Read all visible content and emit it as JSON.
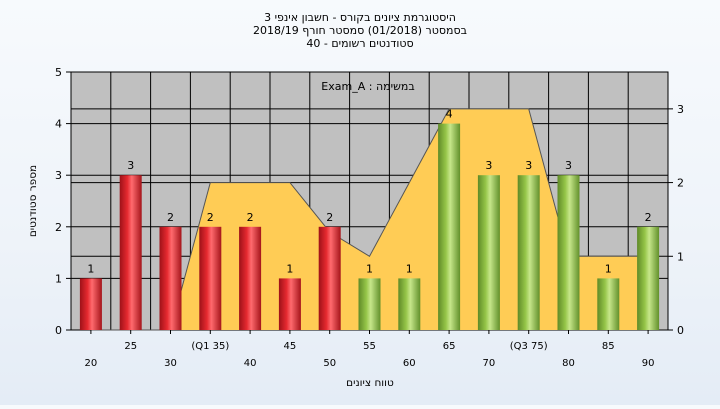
{
  "title_lines": [
    "היסטוגרמת ציונים בקורס - חשבון אינפי 3",
    "בסמסטר  (01/2018)  סמסטר חורף 2018/19",
    "סטודנטים רשומים - 40"
  ],
  "annotation": "במשימה : Exam_A",
  "chart_data": {
    "type": "bar",
    "title": "היסטוגרמת ציונים בקורס - חשבון אינפי 3",
    "xlabel": "טווח ציונים",
    "ylabel": "מספר סטודנטים",
    "categories": [
      "20",
      "25",
      "30",
      "(Q1 35)",
      "40",
      "45",
      "50",
      "55",
      "60",
      "65",
      "70",
      "(Q3 75)",
      "80",
      "85",
      "90"
    ],
    "values": [
      1,
      3,
      2,
      2,
      2,
      1,
      2,
      1,
      1,
      4,
      3,
      3,
      3,
      1,
      2
    ],
    "bar_group": [
      "low",
      "low",
      "low",
      "low",
      "low",
      "low",
      "low",
      "high",
      "high",
      "high",
      "high",
      "high",
      "high",
      "high",
      "high"
    ],
    "ylim": [
      0,
      5
    ],
    "yticks": [
      0,
      1,
      2,
      3,
      4,
      5
    ],
    "y2lim": [
      0,
      3.5
    ],
    "y2ticks": [
      0,
      1,
      2,
      3
    ],
    "background_area": {
      "axis": "right",
      "values": [
        0,
        0,
        0,
        2,
        2,
        2,
        1.33,
        1,
        2,
        3,
        3,
        3,
        1,
        1,
        1
      ]
    },
    "grid": true,
    "colors": {
      "low_bars": "#dd1f26",
      "high_bars": "#8cbc3f",
      "area": "#ffcc55",
      "plot_bg": "#c0c0c0"
    }
  }
}
